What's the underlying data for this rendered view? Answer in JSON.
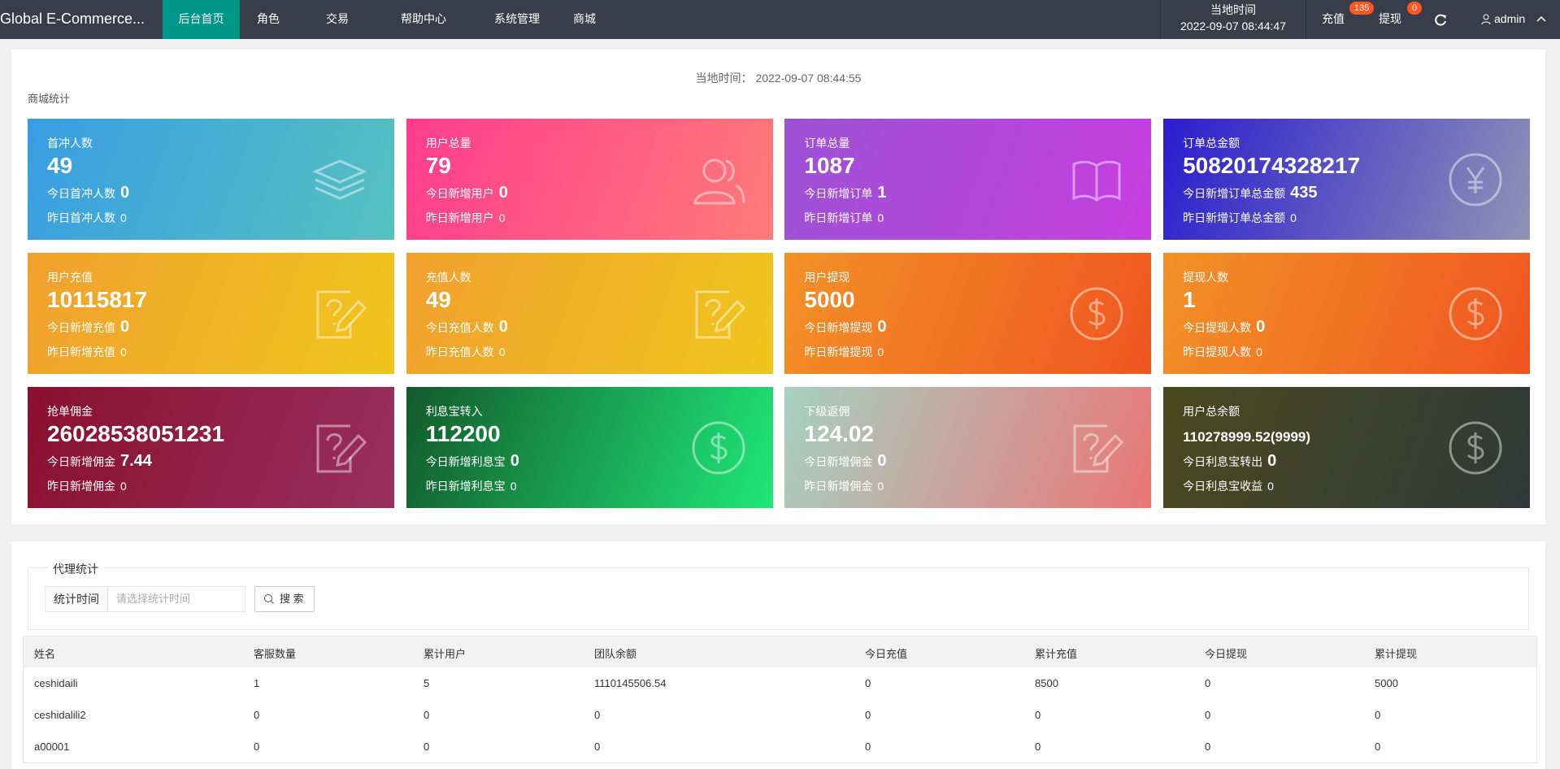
{
  "nav": {
    "logo": "Global E-Commerce...",
    "items": [
      "后台首页",
      "角色",
      "交易",
      "帮助中心",
      "系统管理",
      "商城"
    ],
    "time_label": "当地时间",
    "time": "2022-09-07 08:44:47",
    "recharge": "充值",
    "recharge_badge": "135",
    "withdraw": "提现",
    "withdraw_badge": "0",
    "user": "admin"
  },
  "panel": {
    "time_label": "当地时间：",
    "time": "2022-09-07 08:44:55",
    "title": "商城统计"
  },
  "cards": [
    {
      "title": "首冲人数",
      "value": "49",
      "line1_label": "今日首冲人数",
      "line1_value": "0",
      "line2_label": "昨日首冲人数",
      "line2_value": "0"
    },
    {
      "title": "用户总量",
      "value": "79",
      "line1_label": "今日新增用户",
      "line1_value": "0",
      "line2_label": "昨日新增用户",
      "line2_value": "0"
    },
    {
      "title": "订单总量",
      "value": "1087",
      "line1_label": "今日新增订单",
      "line1_value": "1",
      "line2_label": "昨日新增订单",
      "line2_value": "0"
    },
    {
      "title": "订单总金额",
      "value": "50820174328217",
      "line1_label": "今日新增订单总金额",
      "line1_value": "435",
      "line2_label": "昨日新增订单总金额",
      "line2_value": "0"
    },
    {
      "title": "用户充值",
      "value": "10115817",
      "line1_label": "今日新增充值",
      "line1_value": "0",
      "line2_label": "昨日新增充值",
      "line2_value": "0"
    },
    {
      "title": "充值人数",
      "value": "49",
      "line1_label": "今日充值人数",
      "line1_value": "0",
      "line2_label": "昨日充值人数",
      "line2_value": "0"
    },
    {
      "title": "用户提现",
      "value": "5000",
      "line1_label": "今日新增提现",
      "line1_value": "0",
      "line2_label": "昨日新增提现",
      "line2_value": "0"
    },
    {
      "title": "提现人数",
      "value": "1",
      "line1_label": "今日提现人数",
      "line1_value": "0",
      "line2_label": "昨日提现人数",
      "line2_value": "0"
    },
    {
      "title": "抢单佣金",
      "value": "26028538051231",
      "line1_label": "今日新增佣金",
      "line1_value": "7.44",
      "line2_label": "昨日新增佣金",
      "line2_value": "0"
    },
    {
      "title": "利息宝转入",
      "value": "112200",
      "line1_label": "今日新增利息宝",
      "line1_value": "0",
      "line2_label": "昨日新增利息宝",
      "line2_value": "0"
    },
    {
      "title": "下级返佣",
      "value": "124.02",
      "line1_label": "今日新增佣金",
      "line1_value": "0",
      "line2_label": "昨日新增佣金",
      "line2_value": "0"
    },
    {
      "title": "用户总余额",
      "value": "110278999.52(9999)",
      "line1_label": "今日利息宝转出",
      "line1_value": "0",
      "line2_label": "今日利息宝收益",
      "line2_value": "0"
    }
  ],
  "agent": {
    "legend": "代理统计",
    "filter_label": "统计时间",
    "filter_placeholder": "请选择统计时间",
    "search": "搜 索"
  },
  "table": {
    "headers": [
      "姓名",
      "客服数量",
      "累计用户",
      "团队余额",
      "今日充值",
      "累计充值",
      "今日提现",
      "累计提现"
    ],
    "rows": [
      [
        "ceshidaili",
        "1",
        "5",
        "1110145506.54",
        "0",
        "8500",
        "0",
        "5000"
      ],
      [
        "ceshidalili2",
        "0",
        "0",
        "0",
        "0",
        "0",
        "0",
        "0"
      ],
      [
        "a00001",
        "0",
        "0",
        "0",
        "0",
        "0",
        "0",
        "0"
      ]
    ]
  }
}
